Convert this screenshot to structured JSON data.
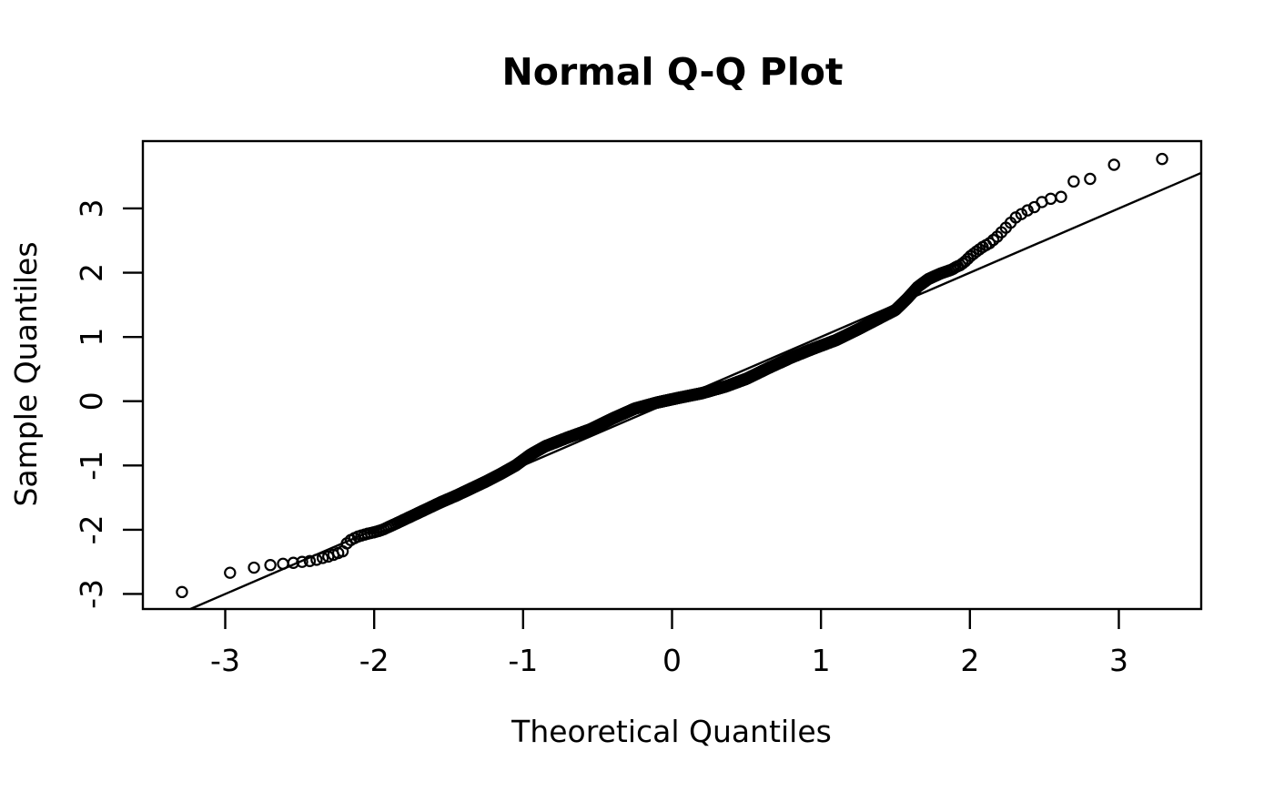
{
  "page": {
    "background_color": "#ffffff",
    "foreground_color": "#000000"
  },
  "chart_data": {
    "type": "scatter",
    "title": "Normal Q-Q Plot",
    "xlabel": "Theoretical Quantiles",
    "ylabel": "Sample Quantiles",
    "x_ticks": [
      -3,
      -2,
      -1,
      0,
      1,
      2,
      3
    ],
    "y_ticks": [
      -3,
      -2,
      -1,
      0,
      1,
      2,
      3
    ],
    "xlim": [
      -3.553,
      3.553
    ],
    "ylim": [
      -3.234,
      4.048
    ],
    "grid": false,
    "legend": null,
    "point_style": {
      "shape": "open-circle",
      "radius_px": 5.6,
      "stroke_px": 2.2,
      "color": "#000000"
    },
    "reference_line": {
      "slope": 1,
      "intercept": 0,
      "color": "#000000",
      "stroke_px": 2.4
    },
    "points": {
      "n": 1000,
      "x_rule": "normal_quantiles_ppoints",
      "note": "x_i = qnorm((i-0.5)/n); y_i = sample quantile read from curve below",
      "extremes": {
        "min_point": [
          -3.29,
          -2.97
        ],
        "max_point": [
          3.29,
          3.77
        ]
      },
      "sample_quantile_curve": [
        [
          -3.291,
          -2.97
        ],
        [
          -2.968,
          -2.67
        ],
        [
          -2.807,
          -2.59
        ],
        [
          -2.697,
          -2.55
        ],
        [
          -2.612,
          -2.53
        ],
        [
          -2.542,
          -2.515
        ],
        [
          -2.484,
          -2.5
        ],
        [
          -2.432,
          -2.487
        ],
        [
          -2.387,
          -2.468
        ],
        [
          -2.346,
          -2.44
        ],
        [
          -2.308,
          -2.418
        ],
        [
          -2.273,
          -2.39
        ],
        [
          -2.241,
          -2.363
        ],
        [
          -2.211,
          -2.335
        ],
        [
          -2.183,
          -2.21
        ],
        [
          -2.157,
          -2.16
        ],
        [
          -2.132,
          -2.13
        ],
        [
          -2.108,
          -2.105
        ],
        [
          -2.086,
          -2.09
        ],
        [
          -2.064,
          -2.075
        ],
        [
          -2.044,
          -2.062
        ],
        [
          -2.024,
          -2.052
        ],
        [
          -2.005,
          -2.042
        ],
        [
          -1.97,
          -2.02
        ],
        [
          -1.938,
          -1.995
        ],
        [
          -1.908,
          -1.962
        ],
        [
          -1.85,
          -1.9
        ],
        [
          -1.75,
          -1.79
        ],
        [
          -1.65,
          -1.68
        ],
        [
          -1.55,
          -1.57
        ],
        [
          -1.45,
          -1.47
        ],
        [
          -1.35,
          -1.36
        ],
        [
          -1.25,
          -1.25
        ],
        [
          -1.15,
          -1.13
        ],
        [
          -1.05,
          -1.0
        ],
        [
          -0.95,
          -0.83
        ],
        [
          -0.85,
          -0.7
        ],
        [
          -0.7,
          -0.565
        ],
        [
          -0.55,
          -0.44
        ],
        [
          -0.4,
          -0.27
        ],
        [
          -0.25,
          -0.115
        ],
        [
          -0.1,
          -0.02
        ],
        [
          0.05,
          0.055
        ],
        [
          0.2,
          0.125
        ],
        [
          0.36,
          0.23
        ],
        [
          0.5,
          0.35
        ],
        [
          0.65,
          0.52
        ],
        [
          0.8,
          0.68
        ],
        [
          0.95,
          0.82
        ],
        [
          1.1,
          0.95
        ],
        [
          1.25,
          1.12
        ],
        [
          1.4,
          1.3
        ],
        [
          1.5,
          1.42
        ],
        [
          1.58,
          1.6
        ],
        [
          1.65,
          1.78
        ],
        [
          1.72,
          1.9
        ],
        [
          1.8,
          1.985
        ],
        [
          1.88,
          2.05
        ],
        [
          1.908,
          2.09
        ],
        [
          1.938,
          2.12
        ],
        [
          1.97,
          2.18
        ],
        [
          2.005,
          2.26
        ],
        [
          2.044,
          2.33
        ],
        [
          2.086,
          2.4
        ],
        [
          2.132,
          2.46
        ],
        [
          2.183,
          2.56
        ],
        [
          2.241,
          2.7
        ],
        [
          2.308,
          2.86
        ],
        [
          2.387,
          2.97
        ],
        [
          2.432,
          3.02
        ],
        [
          2.484,
          3.1
        ],
        [
          2.542,
          3.15
        ],
        [
          2.612,
          3.18
        ],
        [
          2.697,
          3.42
        ],
        [
          2.807,
          3.46
        ],
        [
          2.968,
          3.68
        ],
        [
          3.291,
          3.77
        ]
      ]
    }
  }
}
